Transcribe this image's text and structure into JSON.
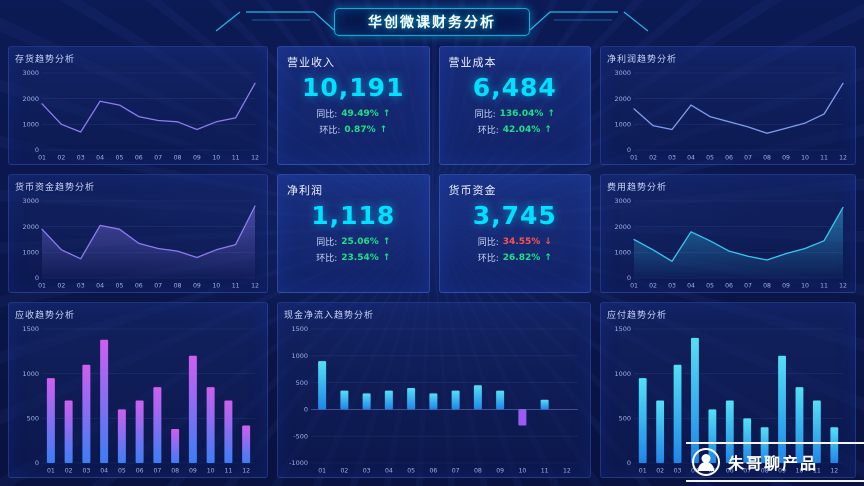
{
  "header": {
    "title": "华创微课财务分析"
  },
  "watermark": {
    "text": "朱哥聊产品",
    "logo_icon": "person-in-circle-icon"
  },
  "colors": {
    "background": "#0a1444",
    "accent_cyan": "#00e4ff",
    "kpi_value": "#00e0ff",
    "positive_green": "#1ce287",
    "negative_red": "#ff5252",
    "line_purple": "#8d7bf0",
    "line_blue": "#7f9df0",
    "area_cyan": "#35c8f0"
  },
  "kpis": [
    {
      "title": "营业收入",
      "value": "10,191",
      "rows": [
        {
          "label": "同比:",
          "value": "49.49%",
          "arrow": "↑",
          "tone": "positive"
        },
        {
          "label": "环比:",
          "value": "0.87%",
          "arrow": "↑",
          "tone": "positive"
        }
      ]
    },
    {
      "title": "营业成本",
      "value": "6,484",
      "rows": [
        {
          "label": "同比:",
          "value": "136.04%",
          "arrow": "↑",
          "tone": "positive"
        },
        {
          "label": "环比:",
          "value": "42.04%",
          "arrow": "↑",
          "tone": "positive"
        }
      ]
    },
    {
      "title": "净利润",
      "value": "1,118",
      "rows": [
        {
          "label": "同比:",
          "value": "25.06%",
          "arrow": "↑",
          "tone": "positive"
        },
        {
          "label": "环比:",
          "value": "23.54%",
          "arrow": "↑",
          "tone": "positive"
        }
      ]
    },
    {
      "title": "货币资金",
      "value": "3,745",
      "rows": [
        {
          "label": "同比:",
          "value": "34.55%",
          "arrow": "↓",
          "tone": "negative"
        },
        {
          "label": "环比:",
          "value": "26.82%",
          "arrow": "↑",
          "tone": "positive"
        }
      ]
    }
  ],
  "panels": {
    "inventory": {
      "title": "存货趋势分析"
    },
    "net_profit": {
      "title": "净利润趋势分析"
    },
    "monetary": {
      "title": "货币资金趋势分析"
    },
    "expense": {
      "title": "费用趋势分析"
    },
    "receivable": {
      "title": "应收趋势分析"
    },
    "cash_inflow": {
      "title": "现金净流入趋势分析"
    },
    "payable": {
      "title": "应付趋势分析"
    }
  },
  "chart_data": [
    {
      "type": "line",
      "title": "存货趋势分析",
      "categories": [
        "01",
        "02",
        "03",
        "04",
        "05",
        "06",
        "07",
        "08",
        "09",
        "10",
        "11",
        "12"
      ],
      "values": [
        1800,
        1000,
        700,
        1900,
        1750,
        1300,
        1150,
        1100,
        800,
        1100,
        1250,
        2600
      ],
      "ylim": [
        0,
        3000
      ],
      "yticks": [
        0,
        1000,
        2000,
        3000
      ],
      "color": "#8d7bf0"
    },
    {
      "type": "line",
      "title": "净利润趋势分析",
      "categories": [
        "01",
        "02",
        "03",
        "04",
        "05",
        "06",
        "07",
        "08",
        "09",
        "10",
        "11",
        "12"
      ],
      "values": [
        1600,
        950,
        800,
        1750,
        1300,
        1100,
        900,
        650,
        850,
        1050,
        1400,
        2600
      ],
      "ylim": [
        0,
        3000
      ],
      "yticks": [
        0,
        1000,
        2000,
        3000
      ],
      "color": "#7f9df0"
    },
    {
      "type": "area",
      "title": "货币资金趋势分析",
      "categories": [
        "01",
        "02",
        "03",
        "04",
        "05",
        "06",
        "07",
        "08",
        "09",
        "10",
        "11",
        "12"
      ],
      "values": [
        1900,
        1100,
        750,
        2050,
        1900,
        1350,
        1150,
        1050,
        800,
        1100,
        1300,
        2800
      ],
      "ylim": [
        0,
        3000
      ],
      "yticks": [
        0,
        1000,
        2000,
        3000
      ],
      "color": "#8d7bf0"
    },
    {
      "type": "area",
      "title": "费用趋势分析",
      "categories": [
        "01",
        "02",
        "03",
        "04",
        "05",
        "06",
        "07",
        "08",
        "09",
        "10",
        "11",
        "12"
      ],
      "values": [
        1500,
        1100,
        650,
        1800,
        1450,
        1050,
        850,
        700,
        950,
        1150,
        1450,
        2750
      ],
      "ylim": [
        0,
        3000
      ],
      "yticks": [
        0,
        1000,
        2000,
        3000
      ],
      "color": "#35c8f0"
    },
    {
      "type": "bar",
      "title": "应收趋势分析",
      "categories": [
        "01",
        "02",
        "03",
        "04",
        "05",
        "06",
        "07",
        "08",
        "09",
        "10",
        "11",
        "12"
      ],
      "values": [
        950,
        700,
        1100,
        1380,
        600,
        700,
        850,
        380,
        1200,
        850,
        700,
        420
      ],
      "ylim": [
        0,
        1500
      ],
      "yticks": [
        0,
        500,
        1000,
        1500
      ],
      "colors": [
        "#cf5ef0",
        "#3b7ef5"
      ]
    },
    {
      "type": "bar",
      "title": "现金净流入趋势分析",
      "categories": [
        "01",
        "02",
        "03",
        "04",
        "05",
        "06",
        "07",
        "08",
        "09",
        "10",
        "11",
        "12"
      ],
      "values": [
        900,
        350,
        300,
        350,
        400,
        300,
        350,
        450,
        350,
        -300,
        180,
        0
      ],
      "ylim": [
        -1000,
        1500
      ],
      "yticks": [
        -1000,
        -500,
        0,
        500,
        1000,
        1500
      ],
      "colors": [
        "#53e0f5",
        "#1f86e8"
      ],
      "neg_color": "#9b5cf5"
    },
    {
      "type": "bar",
      "title": "应付趋势分析",
      "categories": [
        "01",
        "02",
        "03",
        "04",
        "05",
        "06",
        "07",
        "08",
        "09",
        "10",
        "11",
        "12"
      ],
      "values": [
        950,
        700,
        1100,
        1400,
        600,
        700,
        500,
        400,
        1200,
        850,
        700,
        400
      ],
      "ylim": [
        0,
        1500
      ],
      "yticks": [
        0,
        500,
        1000,
        1500
      ],
      "colors": [
        "#53e0f5",
        "#1f86e8"
      ]
    }
  ]
}
